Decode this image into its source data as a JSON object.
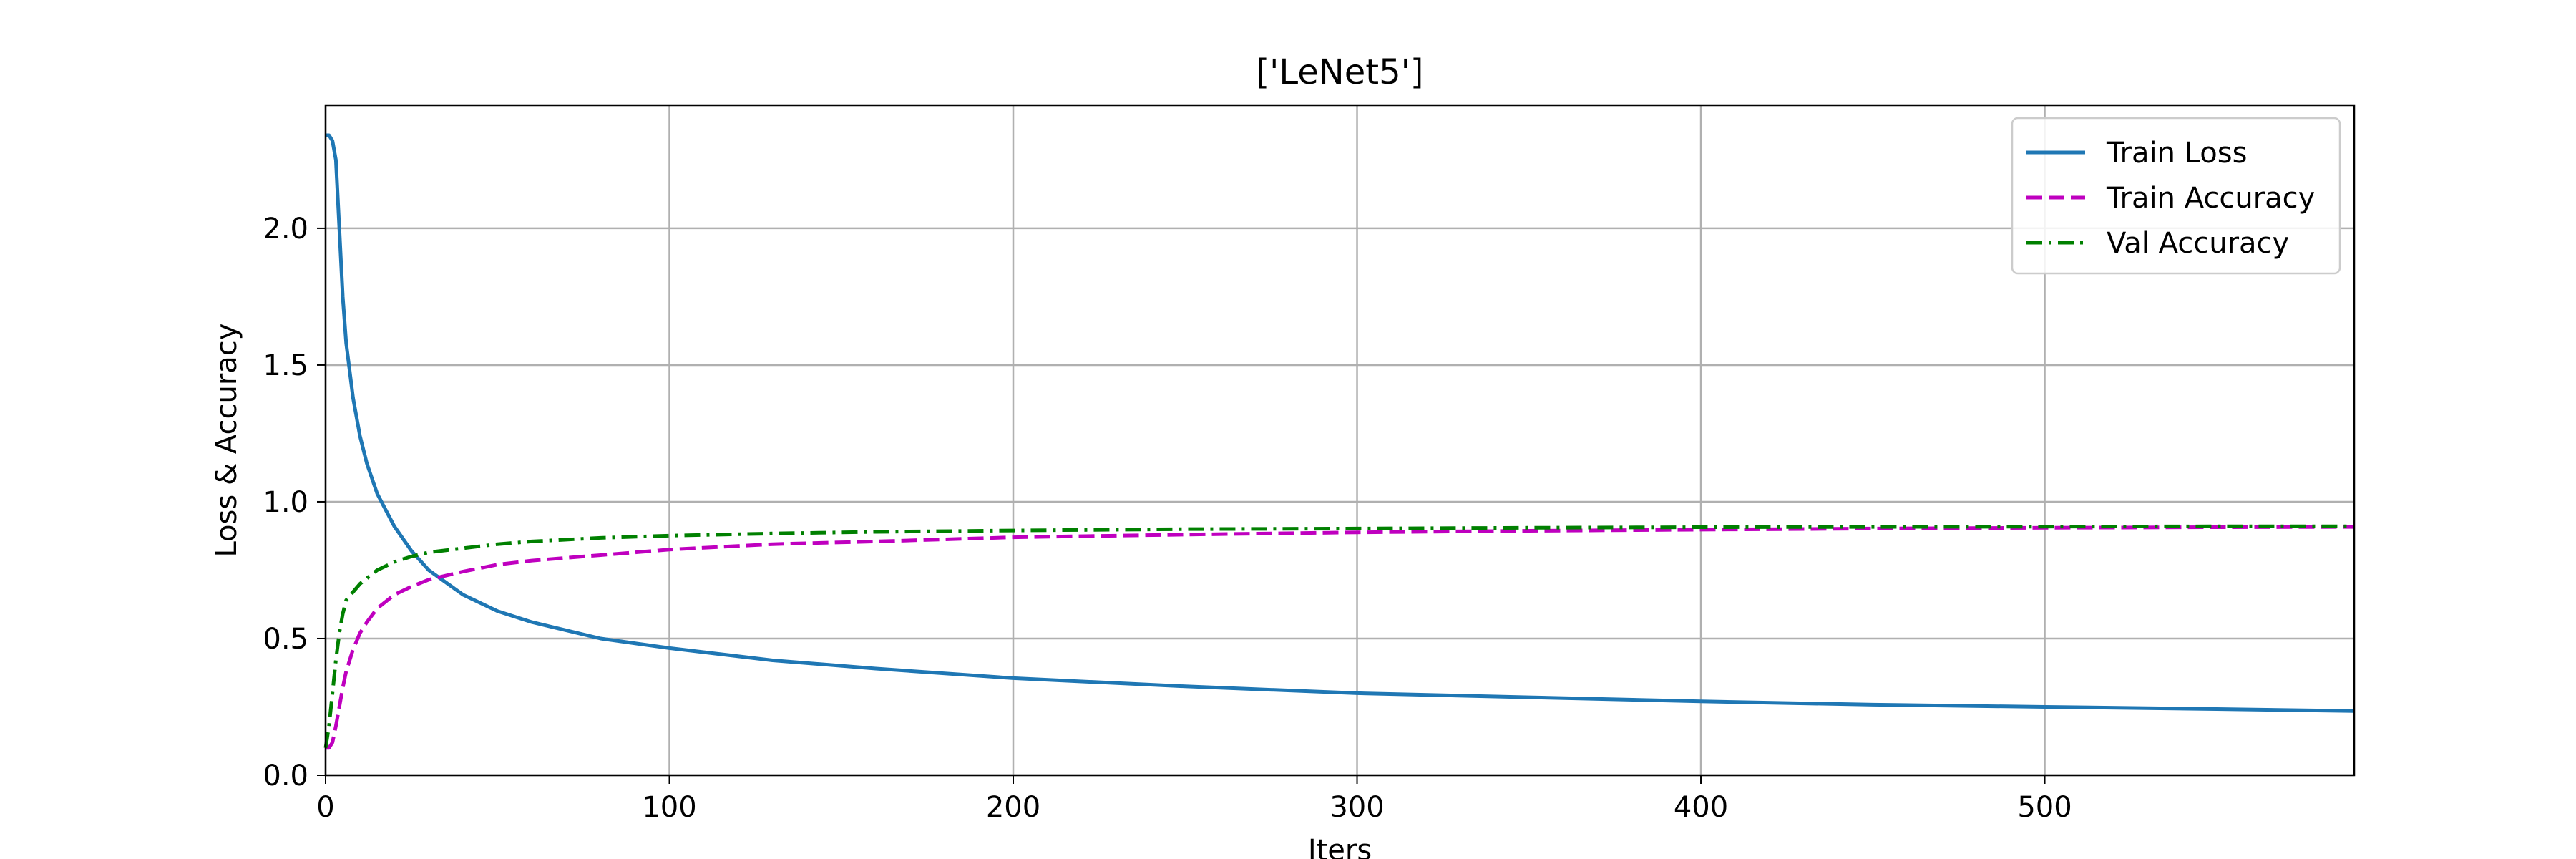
{
  "chart_data": {
    "type": "line",
    "title": "['LeNet5']",
    "xlabel": "Iters",
    "ylabel": "Loss & Accuracy",
    "xlim": [
      0,
      590
    ],
    "ylim": [
      0,
      2.45
    ],
    "x_ticks": [
      0,
      100,
      200,
      300,
      400,
      500
    ],
    "x_tick_labels": [
      "0",
      "100",
      "200",
      "300",
      "400",
      "500"
    ],
    "y_ticks": [
      0.0,
      0.5,
      1.0,
      1.5,
      2.0
    ],
    "y_tick_labels": [
      "0.0",
      "0.5",
      "1.0",
      "1.5",
      "2.0"
    ],
    "grid": true,
    "legend_position": "top-right",
    "series": [
      {
        "name": "Train Loss",
        "color": "#1f77b4",
        "style": "solid",
        "x": [
          0,
          1,
          2,
          3,
          4,
          5,
          6,
          8,
          10,
          12,
          15,
          20,
          25,
          30,
          40,
          50,
          60,
          80,
          100,
          130,
          160,
          200,
          250,
          300,
          350,
          400,
          450,
          500,
          550,
          590
        ],
        "y": [
          2.34,
          2.34,
          2.32,
          2.25,
          2.0,
          1.75,
          1.58,
          1.38,
          1.24,
          1.14,
          1.03,
          0.91,
          0.82,
          0.75,
          0.66,
          0.6,
          0.56,
          0.5,
          0.465,
          0.42,
          0.39,
          0.355,
          0.325,
          0.3,
          0.285,
          0.27,
          0.258,
          0.25,
          0.242,
          0.235
        ]
      },
      {
        "name": "Train Accuracy",
        "color": "#bf00bf",
        "style": "dashed",
        "x": [
          0,
          1,
          2,
          3,
          4,
          5,
          6,
          8,
          10,
          12,
          15,
          20,
          25,
          30,
          40,
          50,
          60,
          80,
          100,
          130,
          160,
          200,
          250,
          300,
          350,
          400,
          450,
          500,
          550,
          590
        ],
        "y": [
          0.1,
          0.1,
          0.12,
          0.18,
          0.25,
          0.32,
          0.38,
          0.46,
          0.52,
          0.56,
          0.61,
          0.66,
          0.69,
          0.715,
          0.745,
          0.77,
          0.785,
          0.805,
          0.825,
          0.845,
          0.855,
          0.87,
          0.88,
          0.888,
          0.894,
          0.898,
          0.902,
          0.905,
          0.907,
          0.908
        ]
      },
      {
        "name": "Val Accuracy",
        "color": "#008000",
        "style": "dashdot",
        "x": [
          0,
          1,
          2,
          3,
          4,
          5,
          6,
          8,
          10,
          12,
          15,
          20,
          25,
          30,
          40,
          50,
          60,
          80,
          100,
          130,
          160,
          200,
          250,
          300,
          350,
          400,
          450,
          500,
          550,
          590
        ],
        "y": [
          0.1,
          0.18,
          0.3,
          0.42,
          0.52,
          0.59,
          0.64,
          0.67,
          0.7,
          0.72,
          0.75,
          0.78,
          0.8,
          0.815,
          0.83,
          0.845,
          0.855,
          0.868,
          0.876,
          0.884,
          0.89,
          0.895,
          0.9,
          0.902,
          0.905,
          0.907,
          0.908,
          0.909,
          0.91,
          0.91
        ]
      }
    ]
  }
}
